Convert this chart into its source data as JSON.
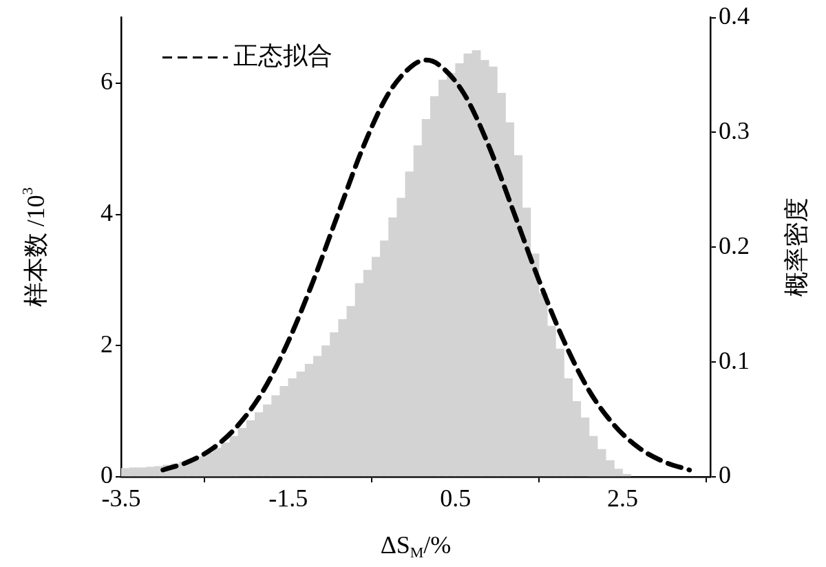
{
  "chart_data": {
    "type": "histogram",
    "xlabel": "ΔS$_{M}$/%",
    "ylabel": "样本数 /10$^{3}$",
    "y2label": "概率密度",
    "bins": [
      -3.5,
      -3.4,
      -3.3,
      -3.2,
      -3.1,
      -3.0,
      -2.9,
      -2.8,
      -2.7,
      -2.6,
      -2.5,
      -2.4,
      -2.3,
      -2.2,
      -2.1,
      -2.0,
      -1.9,
      -1.8,
      -1.7,
      -1.6,
      -1.5,
      -1.4,
      -1.3,
      -1.2,
      -1.1,
      -1.0,
      -0.9,
      -0.8,
      -0.7,
      -0.6,
      -0.5,
      -0.4,
      -0.3,
      -0.2,
      -0.1,
      0.0,
      0.1,
      0.2,
      0.3,
      0.4,
      0.5,
      0.6,
      0.7,
      0.8,
      0.9,
      1.0,
      1.1,
      1.2,
      1.3,
      1.4,
      1.5,
      1.6,
      1.7,
      1.8,
      1.9,
      2.0,
      2.1,
      2.2,
      2.3,
      2.4,
      2.5,
      2.6
    ],
    "values": [
      0.13,
      0.14,
      0.14,
      0.15,
      0.16,
      0.18,
      0.2,
      0.23,
      0.27,
      0.31,
      0.37,
      0.44,
      0.52,
      0.62,
      0.74,
      0.86,
      0.98,
      1.1,
      1.24,
      1.38,
      1.5,
      1.6,
      1.72,
      1.84,
      2.0,
      2.2,
      2.4,
      2.6,
      2.95,
      3.15,
      3.35,
      3.6,
      3.95,
      4.25,
      4.65,
      5.05,
      5.45,
      5.8,
      6.05,
      6.15,
      6.3,
      6.45,
      6.5,
      6.35,
      6.25,
      5.85,
      5.4,
      4.9,
      4.1,
      3.4,
      2.8,
      2.3,
      1.95,
      1.5,
      1.15,
      0.9,
      0.62,
      0.42,
      0.25,
      0.12,
      0.04
    ],
    "color": "#d3d3d3",
    "series": [
      {
        "name": "正态拟合",
        "type": "line",
        "axis": "y2",
        "color": "#000000",
        "line_style": "dashed",
        "x": [
          -3.0,
          -2.7,
          -2.4,
          -2.1,
          -1.8,
          -1.5,
          -1.2,
          -0.9,
          -0.6,
          -0.3,
          0.0,
          0.15,
          0.3,
          0.6,
          0.9,
          1.2,
          1.5,
          1.8,
          2.1,
          2.4,
          2.7,
          3.0,
          3.3
        ],
        "values": [
          0.006,
          0.013,
          0.025,
          0.045,
          0.075,
          0.118,
          0.171,
          0.23,
          0.288,
          0.334,
          0.359,
          0.363,
          0.359,
          0.334,
          0.288,
          0.23,
          0.171,
          0.118,
          0.075,
          0.045,
          0.025,
          0.013,
          0.006
        ]
      }
    ],
    "xlim": [
      -3.5,
      3.55
    ],
    "xticks": [
      -3.5,
      -1.5,
      0.5,
      2.5
    ],
    "ylim": [
      0,
      7
    ],
    "yticks": [
      0,
      2,
      4,
      6
    ],
    "y2lim": [
      0,
      0.4
    ],
    "y2ticks": [
      0,
      0.1,
      0.2,
      0.3,
      0.4
    ],
    "legend": "top left",
    "grid": false
  }
}
